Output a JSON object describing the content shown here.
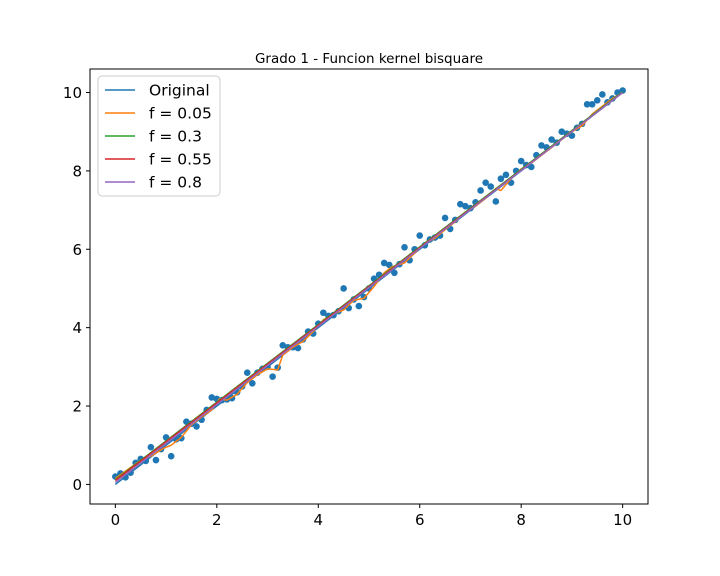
{
  "chart_data": {
    "type": "scatter",
    "title": "Grado 1 - Funcion kernel bisquare",
    "xlabel": "",
    "ylabel": "",
    "xlim": [
      -0.5,
      10.5
    ],
    "ylim": [
      -0.5,
      10.6
    ],
    "xticks": [
      0,
      2,
      4,
      6,
      8,
      10
    ],
    "yticks": [
      0,
      2,
      4,
      6,
      8,
      10
    ],
    "grid": false,
    "legend_position": "top-left",
    "points": {
      "color": "#1f77b4",
      "x": [
        0.0,
        0.1,
        0.2,
        0.3,
        0.4,
        0.5,
        0.6,
        0.7,
        0.8,
        0.9,
        1.0,
        1.1,
        1.2,
        1.3,
        1.4,
        1.5,
        1.6,
        1.7,
        1.8,
        1.9,
        2.0,
        2.1,
        2.2,
        2.3,
        2.4,
        2.5,
        2.6,
        2.7,
        2.8,
        2.9,
        3.0,
        3.1,
        3.2,
        3.3,
        3.4,
        3.5,
        3.6,
        3.7,
        3.8,
        3.9,
        4.0,
        4.1,
        4.2,
        4.3,
        4.4,
        4.5,
        4.6,
        4.7,
        4.8,
        4.9,
        5.0,
        5.1,
        5.2,
        5.3,
        5.4,
        5.5,
        5.6,
        5.7,
        5.8,
        5.9,
        6.0,
        6.1,
        6.2,
        6.3,
        6.4,
        6.5,
        6.6,
        6.7,
        6.8,
        6.9,
        7.0,
        7.1,
        7.2,
        7.3,
        7.4,
        7.5,
        7.6,
        7.7,
        7.8,
        7.9,
        8.0,
        8.1,
        8.2,
        8.3,
        8.4,
        8.5,
        8.6,
        8.7,
        8.8,
        8.9,
        9.0,
        9.1,
        9.2,
        9.3,
        9.4,
        9.5,
        9.6,
        9.7,
        9.8,
        9.9,
        10.0
      ],
      "y": [
        0.2,
        0.28,
        0.18,
        0.3,
        0.55,
        0.65,
        0.6,
        0.95,
        0.62,
        0.9,
        1.2,
        0.72,
        1.15,
        1.18,
        1.6,
        1.55,
        1.48,
        1.65,
        1.9,
        2.22,
        2.18,
        2.15,
        2.17,
        2.2,
        2.35,
        2.5,
        2.85,
        2.58,
        2.85,
        2.95,
        3.0,
        2.75,
        2.98,
        3.55,
        3.5,
        3.5,
        3.48,
        3.7,
        3.9,
        3.85,
        4.1,
        4.38,
        4.3,
        4.32,
        4.42,
        5.0,
        4.5,
        4.72,
        4.55,
        4.78,
        5.0,
        5.25,
        5.35,
        5.65,
        5.6,
        5.4,
        5.62,
        6.05,
        5.72,
        6.0,
        6.35,
        6.1,
        6.25,
        6.3,
        6.35,
        6.8,
        6.52,
        6.75,
        7.15,
        7.1,
        7.05,
        7.2,
        7.5,
        7.7,
        7.6,
        7.22,
        7.8,
        7.9,
        7.7,
        8.0,
        8.25,
        8.15,
        8.1,
        8.4,
        8.65,
        8.6,
        8.8,
        8.72,
        9.0,
        8.95,
        8.9,
        9.1,
        9.2,
        9.7,
        9.7,
        9.8,
        9.95,
        9.75,
        9.85,
        10.0,
        10.05
      ]
    },
    "series": [
      {
        "name": "Original",
        "color": "#1f77b4",
        "x": [
          0,
          10
        ],
        "y": [
          0,
          10
        ]
      },
      {
        "name": "f = 0.05",
        "color": "#ff7f0e",
        "x": [
          0.0,
          0.5,
          0.7,
          0.95,
          1.1,
          1.3,
          1.5,
          1.7,
          1.9,
          2.05,
          2.2,
          2.4,
          2.6,
          2.8,
          3.0,
          3.2,
          3.3,
          3.5,
          3.7,
          3.9,
          4.1,
          4.3,
          4.5,
          4.7,
          4.9,
          5.1,
          5.3,
          5.45,
          5.7,
          5.9,
          6.1,
          6.3,
          6.5,
          6.7,
          6.9,
          7.1,
          7.3,
          7.5,
          7.6,
          7.8,
          8.0,
          8.2,
          8.4,
          8.6,
          8.8,
          9.0,
          9.2,
          9.4,
          9.6,
          9.8,
          10.0
        ],
        "y": [
          0.15,
          0.62,
          0.72,
          0.92,
          1.0,
          1.2,
          1.52,
          1.72,
          1.9,
          2.18,
          2.15,
          2.3,
          2.6,
          2.8,
          2.95,
          2.92,
          3.3,
          3.5,
          3.65,
          3.9,
          4.2,
          4.35,
          4.45,
          4.7,
          4.75,
          5.05,
          5.4,
          5.55,
          5.65,
          5.9,
          6.15,
          6.28,
          6.5,
          6.7,
          6.95,
          7.1,
          7.3,
          7.55,
          7.5,
          7.8,
          8.05,
          8.2,
          8.4,
          8.6,
          8.8,
          9.0,
          9.15,
          9.45,
          9.65,
          9.85,
          10.0
        ]
      },
      {
        "name": "f = 0.3",
        "color": "#2ca02c",
        "x": [
          0,
          10
        ],
        "y": [
          0.12,
          10.02
        ]
      },
      {
        "name": "f = 0.55",
        "color": "#d62728",
        "x": [
          0,
          10
        ],
        "y": [
          0.1,
          10.0
        ]
      },
      {
        "name": "f = 0.8",
        "color": "#9467bd",
        "x": [
          0,
          10
        ],
        "y": [
          0.05,
          10.0
        ]
      }
    ]
  }
}
